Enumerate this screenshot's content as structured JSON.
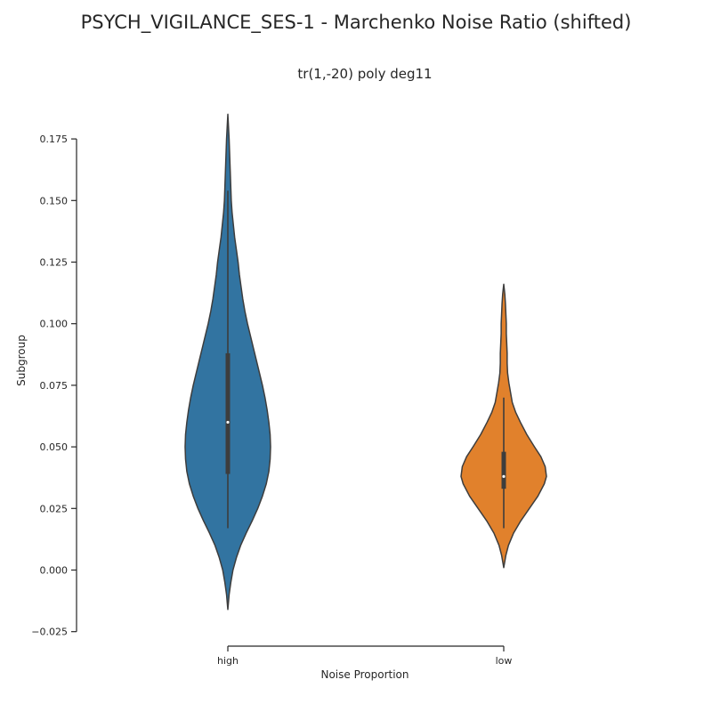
{
  "chart_data": {
    "type": "violin",
    "suptitle": "PSYCH_VIGILANCE_SES-1 - Marchenko Noise Ratio (shifted)",
    "title": "tr(1,-20) poly deg11",
    "xlabel": "Noise Proportion",
    "ylabel": "Subgroup",
    "ylim": [
      -0.025,
      0.185
    ],
    "yticks": [
      -0.025,
      0.0,
      0.025,
      0.05,
      0.075,
      0.1,
      0.125,
      0.15,
      0.175
    ],
    "ytick_labels": [
      "−0.025",
      "0.000",
      "0.025",
      "0.050",
      "0.075",
      "0.100",
      "0.125",
      "0.150",
      "0.175"
    ],
    "categories": [
      "high",
      "low"
    ],
    "violins": [
      {
        "category": "high",
        "color": "#3274a1",
        "min": 0.017,
        "q1": 0.039,
        "median": 0.06,
        "q3": 0.088,
        "max": 0.154,
        "kde_max": 0.185,
        "kde_min": -0.016,
        "density_profile": [
          [
            -0.016,
            0.0
          ],
          [
            -0.01,
            0.03
          ],
          [
            -0.005,
            0.07
          ],
          [
            0.0,
            0.12
          ],
          [
            0.005,
            0.2
          ],
          [
            0.01,
            0.3
          ],
          [
            0.015,
            0.43
          ],
          [
            0.02,
            0.57
          ],
          [
            0.025,
            0.7
          ],
          [
            0.03,
            0.81
          ],
          [
            0.035,
            0.9
          ],
          [
            0.04,
            0.96
          ],
          [
            0.045,
            0.99
          ],
          [
            0.05,
            1.0
          ],
          [
            0.055,
            0.99
          ],
          [
            0.06,
            0.96
          ],
          [
            0.065,
            0.92
          ],
          [
            0.07,
            0.87
          ],
          [
            0.075,
            0.81
          ],
          [
            0.08,
            0.74
          ],
          [
            0.085,
            0.67
          ],
          [
            0.09,
            0.6
          ],
          [
            0.095,
            0.53
          ],
          [
            0.1,
            0.46
          ],
          [
            0.105,
            0.4
          ],
          [
            0.11,
            0.35
          ],
          [
            0.115,
            0.31
          ],
          [
            0.12,
            0.27
          ],
          [
            0.125,
            0.24
          ],
          [
            0.13,
            0.2
          ],
          [
            0.135,
            0.16
          ],
          [
            0.14,
            0.13
          ],
          [
            0.145,
            0.1
          ],
          [
            0.15,
            0.08
          ],
          [
            0.155,
            0.07
          ],
          [
            0.16,
            0.06
          ],
          [
            0.165,
            0.05
          ],
          [
            0.17,
            0.04
          ],
          [
            0.175,
            0.03
          ],
          [
            0.18,
            0.015
          ],
          [
            0.185,
            0.0
          ]
        ]
      },
      {
        "category": "low",
        "color": "#e1812c",
        "min": 0.017,
        "q1": 0.033,
        "median": 0.038,
        "q3": 0.048,
        "max": 0.07,
        "kde_max": 0.116,
        "kde_min": 0.001,
        "density_profile": [
          [
            0.001,
            0.0
          ],
          [
            0.003,
            0.02
          ],
          [
            0.006,
            0.05
          ],
          [
            0.01,
            0.11
          ],
          [
            0.015,
            0.23
          ],
          [
            0.02,
            0.4
          ],
          [
            0.025,
            0.6
          ],
          [
            0.03,
            0.8
          ],
          [
            0.035,
            0.95
          ],
          [
            0.038,
            1.0
          ],
          [
            0.042,
            0.97
          ],
          [
            0.046,
            0.87
          ],
          [
            0.05,
            0.72
          ],
          [
            0.055,
            0.54
          ],
          [
            0.06,
            0.39
          ],
          [
            0.064,
            0.28
          ],
          [
            0.068,
            0.2
          ],
          [
            0.072,
            0.16
          ],
          [
            0.076,
            0.12
          ],
          [
            0.08,
            0.09
          ],
          [
            0.084,
            0.08
          ],
          [
            0.088,
            0.08
          ],
          [
            0.092,
            0.07
          ],
          [
            0.096,
            0.06
          ],
          [
            0.1,
            0.06
          ],
          [
            0.104,
            0.05
          ],
          [
            0.108,
            0.04
          ],
          [
            0.112,
            0.025
          ],
          [
            0.116,
            0.0
          ]
        ]
      }
    ]
  }
}
